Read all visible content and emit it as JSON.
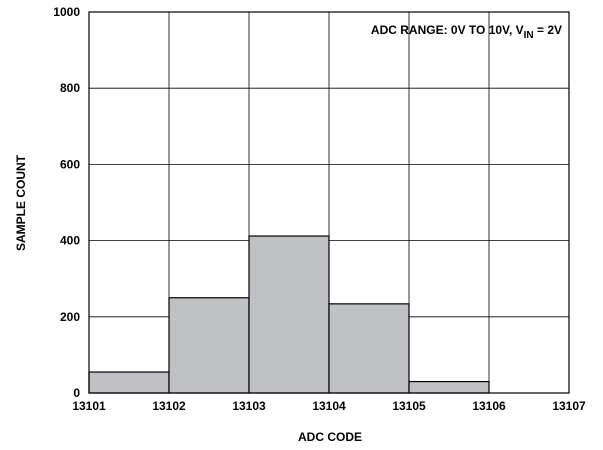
{
  "chart_data": {
    "type": "bar",
    "x_tick_labels": [
      "13101",
      "13102",
      "13103",
      "13104",
      "13105",
      "13106",
      "13107"
    ],
    "y_tick_labels": [
      "0",
      "200",
      "400",
      "600",
      "800",
      "1000"
    ],
    "bins": [
      {
        "from": 13101,
        "to": 13102,
        "value": 55
      },
      {
        "from": 13102,
        "to": 13103,
        "value": 250
      },
      {
        "from": 13103,
        "to": 13104,
        "value": 412
      },
      {
        "from": 13104,
        "to": 13105,
        "value": 234
      },
      {
        "from": 13105,
        "to": 13106,
        "value": 30
      },
      {
        "from": 13106,
        "to": 13107,
        "value": 0
      }
    ],
    "xlim": [
      13101,
      13107
    ],
    "ylim": [
      0,
      1000
    ],
    "y_ticks": [
      0,
      200,
      400,
      600,
      800,
      1000
    ],
    "x_ticks": [
      13101,
      13102,
      13103,
      13104,
      13105,
      13106,
      13107
    ],
    "xlabel": "ADC CODE",
    "ylabel": "SAMPLE COUNT",
    "annotation": {
      "prefix": "ADC RANGE: 0V TO 10V, V",
      "subscript": "IN",
      "suffix": " = 2V"
    },
    "grid": true,
    "bar_color": "#c0c1c4",
    "bar_edge_color": "#000000"
  }
}
